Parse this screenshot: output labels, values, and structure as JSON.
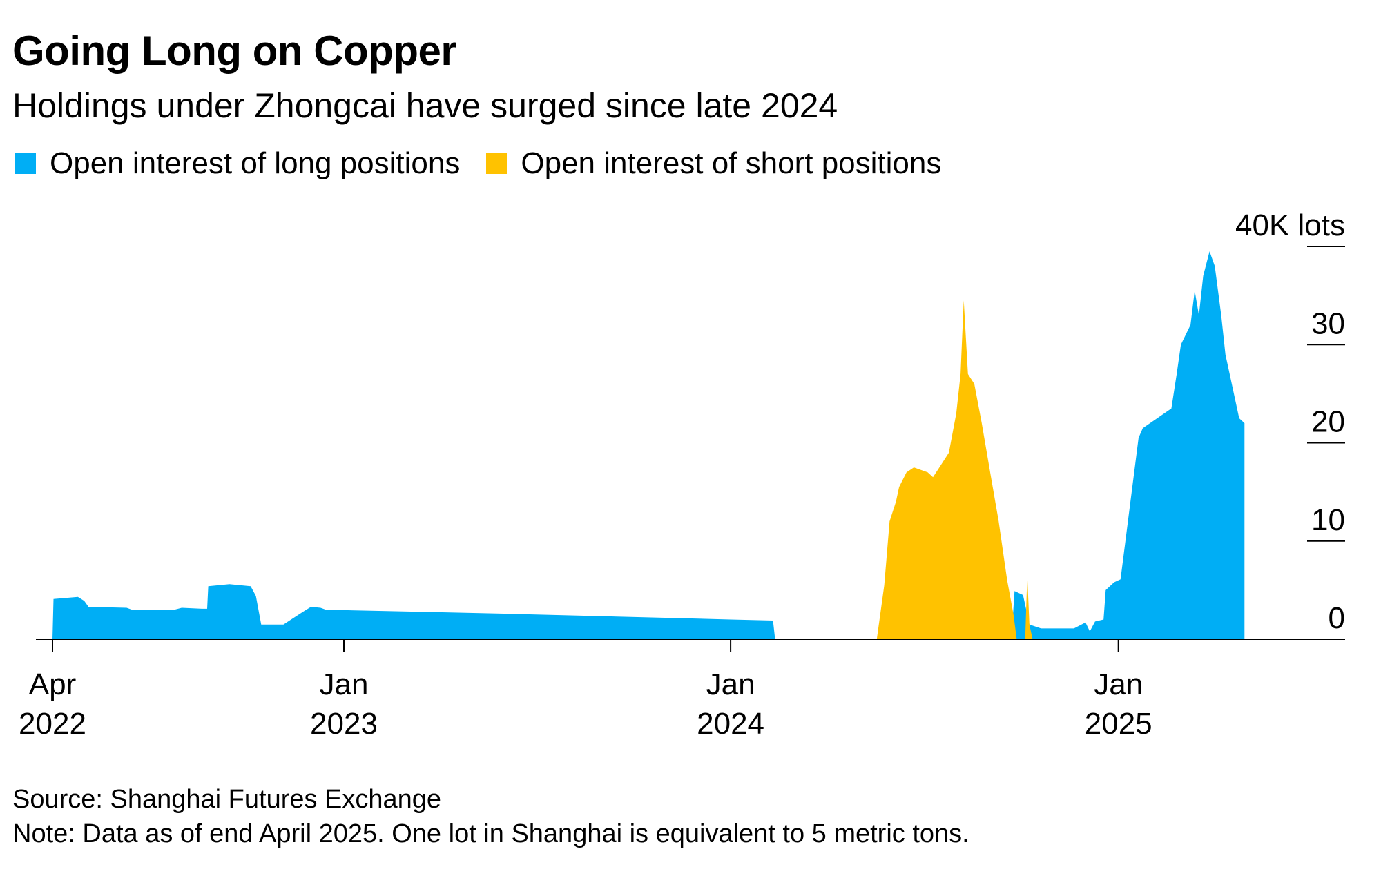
{
  "title": "Going Long on Copper",
  "subtitle": "Holdings under Zhongcai have surged since late 2024",
  "legend": {
    "long_label": "Open interest of long positions",
    "short_label": "Open interest of short positions"
  },
  "colors": {
    "long": "#00aef5",
    "short": "#ffc200",
    "axis": "#000000"
  },
  "footer": {
    "source": "Source: Shanghai Futures Exchange",
    "note": "Note: Data as of end April 2025. One lot in Shanghai is equivalent to 5 metric tons."
  },
  "chart_data": {
    "type": "area",
    "title": "Going Long on Copper",
    "subtitle": "Holdings under Zhongcai have surged since late 2024",
    "y_unit_label": "40K lots",
    "ylim": [
      0,
      40000
    ],
    "y_ticks": [
      0,
      10000,
      20000,
      30000,
      40000
    ],
    "y_tick_labels": [
      "0",
      "10",
      "20",
      "30",
      "40K lots"
    ],
    "x_range": [
      "2022-04-01",
      "2025-05-31"
    ],
    "x_ticks": [
      {
        "date": "2022-04-01",
        "line1": "Apr",
        "line2": "2022"
      },
      {
        "date": "2023-01-01",
        "line1": "Jan",
        "line2": "2023"
      },
      {
        "date": "2024-01-01",
        "line1": "Jan",
        "line2": "2024"
      },
      {
        "date": "2025-01-01",
        "line1": "Jan",
        "line2": "2025"
      }
    ],
    "grid": false,
    "legend_position": "top-left",
    "series": [
      {
        "name": "Open interest of long positions",
        "points": [
          [
            "2022-04-01",
            0
          ],
          [
            "2022-04-02",
            4100
          ],
          [
            "2022-04-25",
            4300
          ],
          [
            "2022-05-01",
            3900
          ],
          [
            "2022-05-05",
            3300
          ],
          [
            "2022-06-10",
            3200
          ],
          [
            "2022-06-15",
            3000
          ],
          [
            "2022-07-25",
            3000
          ],
          [
            "2022-08-01",
            3200
          ],
          [
            "2022-08-20",
            3100
          ],
          [
            "2022-08-25",
            3100
          ],
          [
            "2022-08-26",
            5400
          ],
          [
            "2022-09-15",
            5600
          ],
          [
            "2022-10-05",
            5400
          ],
          [
            "2022-10-10",
            4400
          ],
          [
            "2022-10-15",
            1500
          ],
          [
            "2022-11-05",
            1500
          ],
          [
            "2022-11-25",
            2900
          ],
          [
            "2022-12-01",
            3300
          ],
          [
            "2022-12-10",
            3200
          ],
          [
            "2022-12-15",
            3000
          ],
          [
            "2023-06-01",
            2600
          ],
          [
            "2024-01-01",
            2000
          ],
          [
            "2024-02-10",
            1900
          ],
          [
            "2024-02-12",
            0
          ],
          [
            "2024-05-20",
            0
          ],
          [
            "2024-05-22",
            700
          ],
          [
            "2024-05-24",
            0
          ],
          [
            "2024-09-22",
            0
          ],
          [
            "2024-09-25",
            4900
          ],
          [
            "2024-10-03",
            4500
          ],
          [
            "2024-10-06",
            3000
          ],
          [
            "2024-10-09",
            1500
          ],
          [
            "2024-10-20",
            1100
          ],
          [
            "2024-11-20",
            1100
          ],
          [
            "2024-12-01",
            1700
          ],
          [
            "2024-12-05",
            800
          ],
          [
            "2024-12-10",
            1800
          ],
          [
            "2024-12-18",
            2000
          ],
          [
            "2024-12-20",
            5000
          ],
          [
            "2024-12-28",
            5800
          ],
          [
            "2025-01-03",
            6100
          ],
          [
            "2025-01-10",
            12000
          ],
          [
            "2025-01-20",
            20500
          ],
          [
            "2025-01-24",
            21500
          ],
          [
            "2025-02-20",
            23500
          ],
          [
            "2025-02-25",
            27000
          ],
          [
            "2025-03-01",
            30000
          ],
          [
            "2025-03-10",
            32000
          ],
          [
            "2025-03-14",
            35500
          ],
          [
            "2025-03-18",
            33000
          ],
          [
            "2025-03-22",
            37000
          ],
          [
            "2025-03-28",
            39500
          ],
          [
            "2025-04-02",
            38000
          ],
          [
            "2025-04-08",
            33000
          ],
          [
            "2025-04-12",
            29000
          ],
          [
            "2025-04-18",
            26000
          ],
          [
            "2025-04-25",
            22500
          ],
          [
            "2025-04-30",
            22000
          ],
          [
            "2025-04-30",
            0
          ]
        ]
      },
      {
        "name": "Open interest of short positions",
        "points": [
          [
            "2024-05-18",
            0
          ],
          [
            "2024-05-25",
            5500
          ],
          [
            "2024-05-30",
            12000
          ],
          [
            "2024-06-05",
            14000
          ],
          [
            "2024-06-08",
            15500
          ],
          [
            "2024-06-15",
            17000
          ],
          [
            "2024-06-22",
            17500
          ],
          [
            "2024-07-05",
            17000
          ],
          [
            "2024-07-10",
            16500
          ],
          [
            "2024-07-16",
            17500
          ],
          [
            "2024-07-25",
            19000
          ],
          [
            "2024-08-01",
            23000
          ],
          [
            "2024-08-05",
            27000
          ],
          [
            "2024-08-08",
            34500
          ],
          [
            "2024-08-12",
            27000
          ],
          [
            "2024-08-18",
            26000
          ],
          [
            "2024-08-25",
            22000
          ],
          [
            "2024-09-02",
            17000
          ],
          [
            "2024-09-10",
            12000
          ],
          [
            "2024-09-18",
            6000
          ],
          [
            "2024-09-24",
            2500
          ],
          [
            "2024-09-27",
            0
          ],
          [
            "2024-10-05",
            0
          ],
          [
            "2024-10-07",
            6500
          ],
          [
            "2024-10-09",
            1500
          ],
          [
            "2024-10-12",
            0
          ]
        ]
      }
    ]
  }
}
